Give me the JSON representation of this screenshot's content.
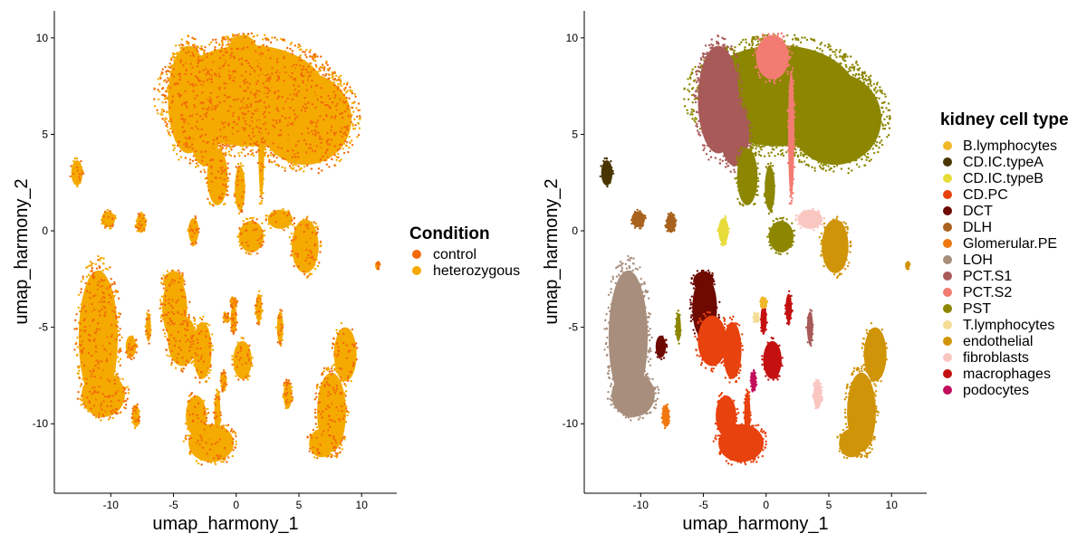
{
  "colors": {
    "control": "#F26A0A",
    "heterozygous": "#F4AA00",
    "B.lymphocytes": "#F0B828",
    "CD.IC.typeA": "#4A3500",
    "CD.IC.typeB": "#E8DC3A",
    "CD.PC": "#E8420E",
    "DCT": "#6E0A00",
    "DLH": "#A8621E",
    "Glomerular.PE": "#F07810",
    "LOH": "#A88E7C",
    "PCT.S1": "#A85A58",
    "PCT.S2": "#F37C72",
    "PST": "#8C8600",
    "T.lymphocytes": "#F5DC96",
    "endothelial": "#D09408",
    "fibroblasts": "#F9C6C2",
    "macrophages": "#C41010",
    "podocytes": "#C20E5C"
  },
  "chart_data": [
    {
      "type": "scatter",
      "xlabel": "umap_harmony_1",
      "ylabel": "umap_harmony_2",
      "xlim": [
        -14.5,
        12.8
      ],
      "ylim": [
        -13.6,
        11.4
      ],
      "x_ticks": [
        -10,
        -5,
        0,
        5,
        10
      ],
      "y_ticks": [
        -10,
        -5,
        0,
        5,
        10
      ],
      "x_tick_labels": [
        "-10",
        "-5",
        "0",
        "5",
        "10"
      ],
      "y_tick_labels": [
        "-10",
        "-5",
        "0",
        "5",
        "10"
      ],
      "legend_title": "Condition",
      "legend_position": "right",
      "legend_entries": [
        "control",
        "heterozygous"
      ],
      "grid": false
    },
    {
      "type": "scatter",
      "xlabel": "umap_harmony_1",
      "ylabel": "umap_harmony_2",
      "xlim": [
        -14.5,
        12.8
      ],
      "ylim": [
        -13.6,
        11.4
      ],
      "x_ticks": [
        -10,
        -5,
        0,
        5,
        10
      ],
      "y_ticks": [
        -10,
        -5,
        0,
        5,
        10
      ],
      "x_tick_labels": [
        "-10",
        "-5",
        "0",
        "5",
        "10"
      ],
      "y_tick_labels": [
        "-10",
        "-5",
        "0",
        "5",
        "10"
      ],
      "legend_title": "kidney cell type",
      "legend_position": "right",
      "legend_entries": [
        "B.lymphocytes",
        "CD.IC.typeA",
        "CD.IC.typeB",
        "CD.PC",
        "DCT",
        "DLH",
        "Glomerular.PE",
        "LOH",
        "PCT.S1",
        "PCT.S2",
        "PST",
        "T.lymphocytes",
        "endothelial",
        "fibroblasts",
        "macrophages",
        "podocytes"
      ],
      "grid": false
    }
  ],
  "clusters": [
    {
      "x": 1.0,
      "y": 7.0,
      "rx": 7.6,
      "ry": 3.2,
      "type": "PST"
    },
    {
      "x": 5.5,
      "y": 5.8,
      "rx": 4.5,
      "ry": 2.9,
      "type": "PST"
    },
    {
      "x": -3.8,
      "y": 6.8,
      "rx": 2.0,
      "ry": 3.4,
      "type": "PCT.S1"
    },
    {
      "x": -2.5,
      "y": 5.0,
      "rx": 1.4,
      "ry": 2.0,
      "type": "PCT.S1"
    },
    {
      "x": 0.5,
      "y": 9.0,
      "rx": 1.6,
      "ry": 1.4,
      "type": "PCT.S2"
    },
    {
      "x": 2.0,
      "y": 5.0,
      "rx": 0.3,
      "ry": 4.0,
      "type": "PCT.S2"
    },
    {
      "x": -1.5,
      "y": 2.8,
      "rx": 1.0,
      "ry": 1.8,
      "type": "PST"
    },
    {
      "x": 0.3,
      "y": 2.2,
      "rx": 0.5,
      "ry": 1.4,
      "type": "PST"
    },
    {
      "x": -12.7,
      "y": 3.0,
      "rx": 0.55,
      "ry": 0.8,
      "type": "CD.IC.typeA"
    },
    {
      "x": -10.2,
      "y": 0.6,
      "rx": 0.65,
      "ry": 0.5,
      "type": "DLH"
    },
    {
      "x": -7.6,
      "y": 0.4,
      "rx": 0.45,
      "ry": 0.6,
      "type": "DLH"
    },
    {
      "x": -3.4,
      "y": 0.0,
      "rx": 0.5,
      "ry": 0.8,
      "type": "CD.IC.typeB"
    },
    {
      "x": 3.5,
      "y": 0.6,
      "rx": 1.2,
      "ry": 0.6,
      "type": "fibroblasts"
    },
    {
      "x": 5.5,
      "y": -0.8,
      "rx": 1.3,
      "ry": 1.7,
      "type": "endothelial"
    },
    {
      "x": 1.2,
      "y": -0.3,
      "rx": 1.2,
      "ry": 1.0,
      "type": "PST"
    },
    {
      "x": -11.0,
      "y": -5.5,
      "rx": 1.9,
      "ry": 4.2,
      "type": "LOH"
    },
    {
      "x": -10.6,
      "y": -8.5,
      "rx": 2.1,
      "ry": 1.4,
      "type": "LOH"
    },
    {
      "x": -4.9,
      "y": -4.0,
      "rx": 1.2,
      "ry": 2.0,
      "type": "DCT"
    },
    {
      "x": -4.3,
      "y": -5.7,
      "rx": 1.4,
      "ry": 1.6,
      "type": "CD.PC"
    },
    {
      "x": -2.7,
      "y": -6.2,
      "rx": 0.9,
      "ry": 1.8,
      "type": "CD.PC"
    },
    {
      "x": -2.0,
      "y": -11.0,
      "rx": 2.2,
      "ry": 1.2,
      "type": "CD.PC"
    },
    {
      "x": -3.2,
      "y": -9.6,
      "rx": 1.0,
      "ry": 1.3,
      "type": "CD.PC"
    },
    {
      "x": 0.5,
      "y": -6.7,
      "rx": 0.9,
      "ry": 1.2,
      "type": "macrophages"
    },
    {
      "x": -0.2,
      "y": -4.6,
      "rx": 0.3,
      "ry": 0.9,
      "type": "macrophages"
    },
    {
      "x": -8.4,
      "y": -6.0,
      "rx": 0.5,
      "ry": 0.7,
      "type": "DCT"
    },
    {
      "x": 7.6,
      "y": -9.4,
      "rx": 1.4,
      "ry": 2.5,
      "type": "endothelial"
    },
    {
      "x": 8.7,
      "y": -6.4,
      "rx": 1.1,
      "ry": 1.7,
      "type": "endothelial"
    },
    {
      "x": 6.8,
      "y": -11.0,
      "rx": 1.2,
      "ry": 0.9,
      "type": "endothelial"
    },
    {
      "x": -1.0,
      "y": -7.8,
      "rx": 0.25,
      "ry": 0.6,
      "type": "podocytes"
    },
    {
      "x": -8.0,
      "y": -9.6,
      "rx": 0.35,
      "ry": 0.7,
      "type": "Glomerular.PE"
    },
    {
      "x": 4.1,
      "y": -8.5,
      "rx": 0.4,
      "ry": 0.9,
      "type": "fibroblasts"
    },
    {
      "x": 3.5,
      "y": -5.0,
      "rx": 0.3,
      "ry": 1.0,
      "type": "PCT.S1"
    },
    {
      "x": 1.8,
      "y": -4.0,
      "rx": 0.3,
      "ry": 0.9,
      "type": "macrophages"
    },
    {
      "x": -0.2,
      "y": -3.7,
      "rx": 0.3,
      "ry": 0.3,
      "type": "B.lymphocytes"
    },
    {
      "x": -0.8,
      "y": -4.5,
      "rx": 0.3,
      "ry": 0.3,
      "type": "T.lymphocytes"
    },
    {
      "x": 11.3,
      "y": -1.8,
      "rx": 0.15,
      "ry": 0.2,
      "type": "endothelial"
    },
    {
      "x": -1.5,
      "y": -9.5,
      "rx": 0.3,
      "ry": 1.4,
      "type": "CD.PC"
    },
    {
      "x": -5.0,
      "y": -2.6,
      "rx": 1.0,
      "ry": 0.6,
      "type": "DCT"
    },
    {
      "x": -7.0,
      "y": -5.0,
      "rx": 0.25,
      "ry": 0.9,
      "type": "PST"
    }
  ]
}
